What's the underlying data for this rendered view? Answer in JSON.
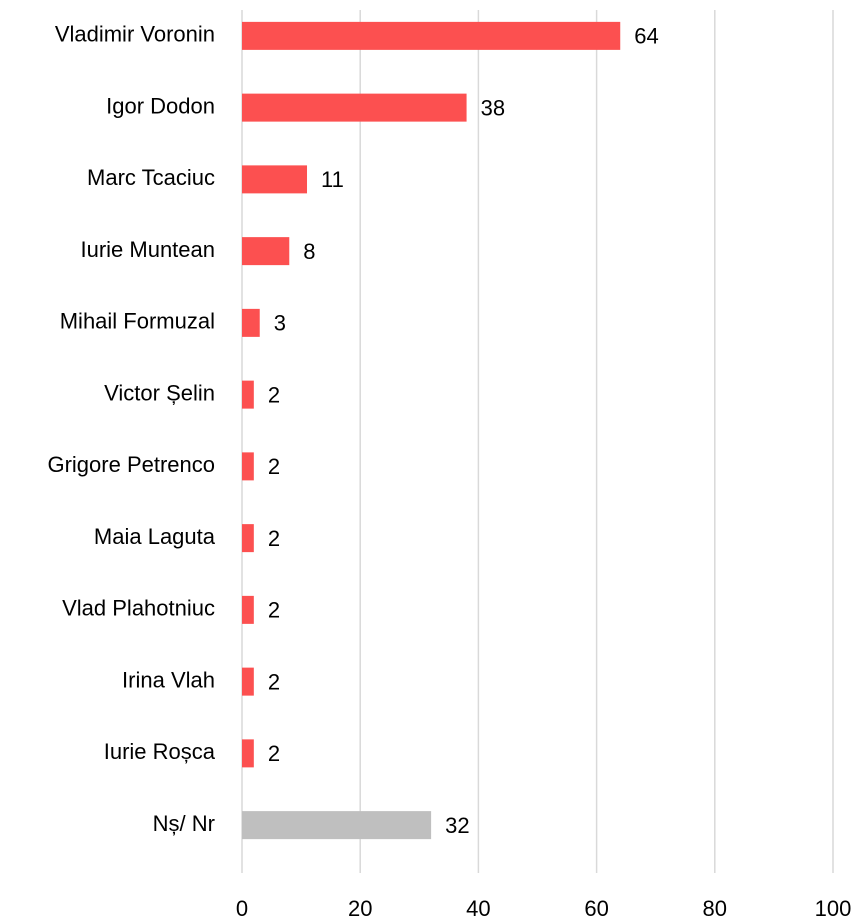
{
  "chart_data": {
    "type": "bar",
    "orientation": "horizontal",
    "categories": [
      "Vladimir Voronin",
      "Igor Dodon",
      "Marc Tcaciuc",
      "Iurie Muntean",
      "Mihail Formuzal",
      "Victor Șelin",
      "Grigore Petrenco",
      "Maia Laguta",
      "Vlad Plahotniuc",
      "Irina Vlah",
      "Iurie Roșca",
      "Nș/ Nr"
    ],
    "values": [
      64,
      38,
      11,
      8,
      3,
      2,
      2,
      2,
      2,
      2,
      2,
      32
    ],
    "colors": [
      "#fc5050",
      "#fc5050",
      "#fc5050",
      "#fc5050",
      "#fc5050",
      "#fc5050",
      "#fc5050",
      "#fc5050",
      "#fc5050",
      "#fc5050",
      "#fc5050",
      "#bfbfbf"
    ],
    "xlim": [
      0,
      100
    ],
    "xticks": [
      0,
      20,
      40,
      60,
      80,
      100
    ],
    "grid": true
  }
}
